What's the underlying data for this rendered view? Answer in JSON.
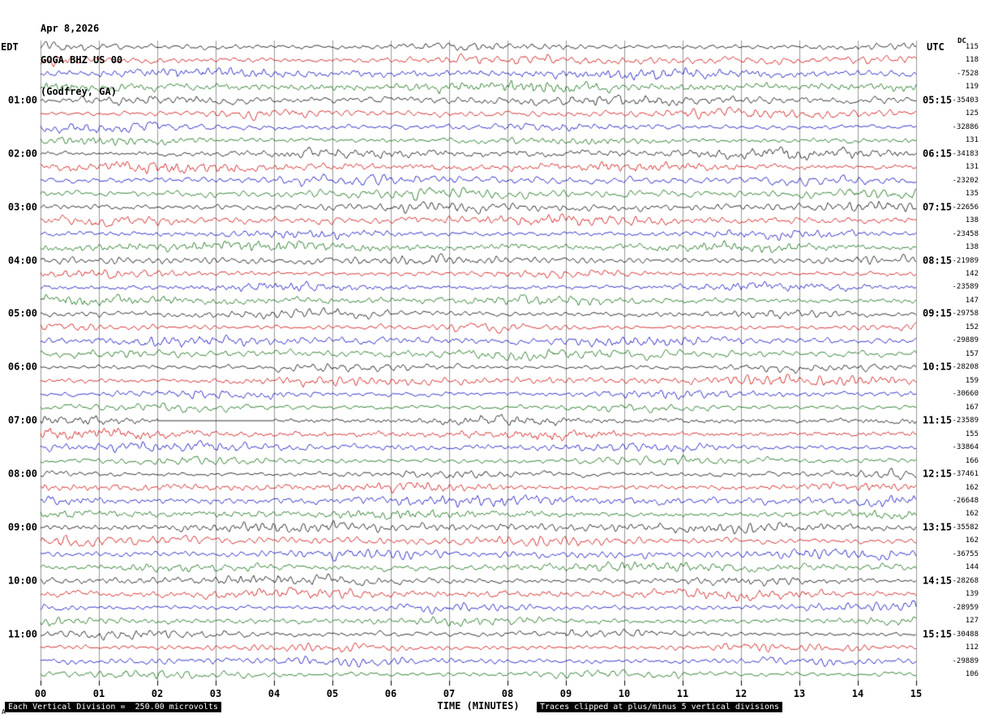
{
  "header": {
    "date": "Apr 8,2026",
    "station": "GOGA BHZ US 00",
    "location": "(Godfrey, GA)"
  },
  "axes": {
    "left_title": "EDT",
    "right_title": "UTC",
    "dc_header": "DC",
    "x_label": "TIME (MINUTES)"
  },
  "footer": {
    "scale_note": "Each Vertical Division =  250.00 microvolts",
    "clip_note": "Traces clipped at plus/minus 5 vertical divisions",
    "corner_marker": "A"
  },
  "chart_data": {
    "type": "line",
    "subtype": "seismogram-helicorder",
    "title": "GOGA BHZ US 00 (Godfrey, GA) Apr 8,2026",
    "xlabel": "TIME (MINUTES)",
    "x_range_minutes": [
      0,
      15
    ],
    "x_ticks": [
      "00",
      "01",
      "02",
      "03",
      "04",
      "05",
      "06",
      "07",
      "08",
      "09",
      "10",
      "11",
      "12",
      "13",
      "14",
      "15"
    ],
    "minutes_per_line": 15,
    "lines_per_hour": 4,
    "vertical_division_microvolts": 250.0,
    "clip_divisions": 5,
    "grid": "vertical-every-minute",
    "colors": {
      "black": "#000000",
      "red": "#cc0000",
      "blue": "#0000bb",
      "green": "#006600"
    },
    "color_cycle": [
      "black",
      "red",
      "blue",
      "green"
    ],
    "rows": [
      {
        "c": "black",
        "edt": "",
        "utc": "",
        "dc": "115"
      },
      {
        "c": "red",
        "edt": "",
        "utc": "",
        "dc": "118"
      },
      {
        "c": "blue",
        "edt": "",
        "utc": "",
        "dc": "-7528"
      },
      {
        "c": "green",
        "edt": "",
        "utc": "",
        "dc": "119"
      },
      {
        "c": "black",
        "edt": "01:00",
        "utc": "05:15",
        "dc": "-35403"
      },
      {
        "c": "red",
        "edt": "",
        "utc": "",
        "dc": "125"
      },
      {
        "c": "blue",
        "edt": "",
        "utc": "",
        "dc": "-32886"
      },
      {
        "c": "green",
        "edt": "",
        "utc": "",
        "dc": "131"
      },
      {
        "c": "black",
        "edt": "02:00",
        "utc": "06:15",
        "dc": "-34183"
      },
      {
        "c": "red",
        "edt": "",
        "utc": "",
        "dc": "131"
      },
      {
        "c": "blue",
        "edt": "",
        "utc": "",
        "dc": "-23202"
      },
      {
        "c": "green",
        "edt": "",
        "utc": "",
        "dc": "135"
      },
      {
        "c": "black",
        "edt": "03:00",
        "utc": "07:15",
        "dc": "-22656"
      },
      {
        "c": "red",
        "edt": "",
        "utc": "",
        "dc": "138"
      },
      {
        "c": "blue",
        "edt": "",
        "utc": "",
        "dc": "-23458"
      },
      {
        "c": "green",
        "edt": "",
        "utc": "",
        "dc": "138"
      },
      {
        "c": "black",
        "edt": "04:00",
        "utc": "08:15",
        "dc": "-21989"
      },
      {
        "c": "red",
        "edt": "",
        "utc": "",
        "dc": "142"
      },
      {
        "c": "blue",
        "edt": "",
        "utc": "",
        "dc": "-23589"
      },
      {
        "c": "green",
        "edt": "",
        "utc": "",
        "dc": "147"
      },
      {
        "c": "black",
        "edt": "05:00",
        "utc": "09:15",
        "dc": "-29758"
      },
      {
        "c": "red",
        "edt": "",
        "utc": "",
        "dc": "152"
      },
      {
        "c": "blue",
        "edt": "",
        "utc": "",
        "dc": "-29889"
      },
      {
        "c": "green",
        "edt": "",
        "utc": "",
        "dc": "157"
      },
      {
        "c": "black",
        "edt": "06:00",
        "utc": "10:15",
        "dc": "-28208"
      },
      {
        "c": "red",
        "edt": "",
        "utc": "",
        "dc": "159"
      },
      {
        "c": "blue",
        "edt": "",
        "utc": "",
        "dc": "-30660"
      },
      {
        "c": "green",
        "edt": "",
        "utc": "",
        "dc": "167"
      },
      {
        "c": "black",
        "edt": "07:00",
        "utc": "11:15",
        "dc": "-23589",
        "flat": [
          2.0,
          4.0
        ]
      },
      {
        "c": "red",
        "edt": "",
        "utc": "",
        "dc": "155"
      },
      {
        "c": "blue",
        "edt": "",
        "utc": "",
        "dc": "-33864"
      },
      {
        "c": "green",
        "edt": "",
        "utc": "",
        "dc": "166"
      },
      {
        "c": "black",
        "edt": "08:00",
        "utc": "12:15",
        "dc": "-37461"
      },
      {
        "c": "red",
        "edt": "",
        "utc": "",
        "dc": "162"
      },
      {
        "c": "blue",
        "edt": "",
        "utc": "",
        "dc": "-26648"
      },
      {
        "c": "green",
        "edt": "",
        "utc": "",
        "dc": "162"
      },
      {
        "c": "black",
        "edt": "09:00",
        "utc": "13:15",
        "dc": "-35582"
      },
      {
        "c": "red",
        "edt": "",
        "utc": "",
        "dc": "162"
      },
      {
        "c": "blue",
        "edt": "",
        "utc": "",
        "dc": "-36755"
      },
      {
        "c": "green",
        "edt": "",
        "utc": "",
        "dc": "144"
      },
      {
        "c": "black",
        "edt": "10:00",
        "utc": "14:15",
        "dc": "-28268"
      },
      {
        "c": "red",
        "edt": "",
        "utc": "",
        "dc": "139"
      },
      {
        "c": "blue",
        "edt": "",
        "utc": "",
        "dc": "-28959"
      },
      {
        "c": "green",
        "edt": "",
        "utc": "",
        "dc": "127"
      },
      {
        "c": "black",
        "edt": "11:00",
        "utc": "15:15",
        "dc": "-30488"
      },
      {
        "c": "red",
        "edt": "",
        "utc": "",
        "dc": "112"
      },
      {
        "c": "blue",
        "edt": "",
        "utc": "",
        "dc": "-29889"
      },
      {
        "c": "green",
        "edt": "",
        "utc": "",
        "dc": "106"
      }
    ]
  }
}
